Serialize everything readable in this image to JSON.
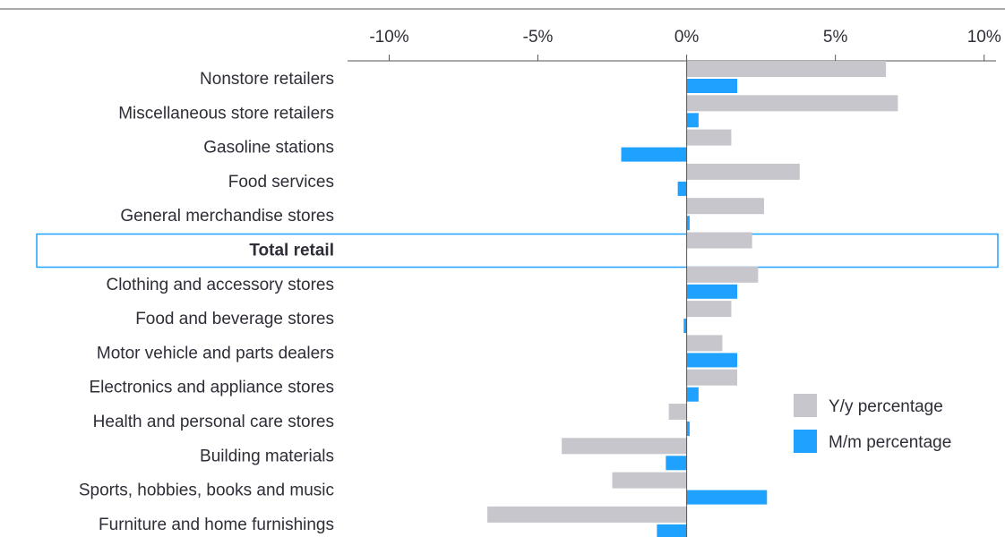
{
  "chart_data": {
    "type": "hbar",
    "categories": [
      "Nonstore retailers",
      "Miscellaneous store retailers",
      "Gasoline stations",
      "Food services",
      "General merchandise stores",
      "Total retail",
      "Clothing and accessory stores",
      "Food and beverage stores",
      "Motor vehicle and parts dealers",
      "Electronics and appliance stores",
      "Health and personal care stores",
      "Building materials",
      "Sports, hobbies, books and music",
      "Furniture and home furnishings"
    ],
    "highlight": "Total retail",
    "series": [
      {
        "name": "Y/y percentage",
        "color": "#c6c6cc",
        "values": [
          6.7,
          7.1,
          1.5,
          3.8,
          2.6,
          2.2,
          2.4,
          1.5,
          1.2,
          1.7,
          -0.6,
          -4.2,
          -2.5,
          -6.7
        ]
      },
      {
        "name": "M/m percentage",
        "color": "#1ea1ff",
        "values": [
          1.7,
          0.4,
          -2.2,
          -0.3,
          0.1,
          0,
          1.7,
          -0.1,
          1.7,
          0.4,
          0.1,
          -0.7,
          2.7,
          -1.0
        ]
      }
    ],
    "xlim": [
      -11.4,
      10.4
    ],
    "xticks": [
      {
        "value": -10,
        "label": "-10%"
      },
      {
        "value": -5,
        "label": "-5%"
      },
      {
        "value": 0,
        "label": "0%"
      },
      {
        "value": 5,
        "label": "5%"
      },
      {
        "value": 10,
        "label": "10%"
      }
    ],
    "legend": "lower right"
  }
}
